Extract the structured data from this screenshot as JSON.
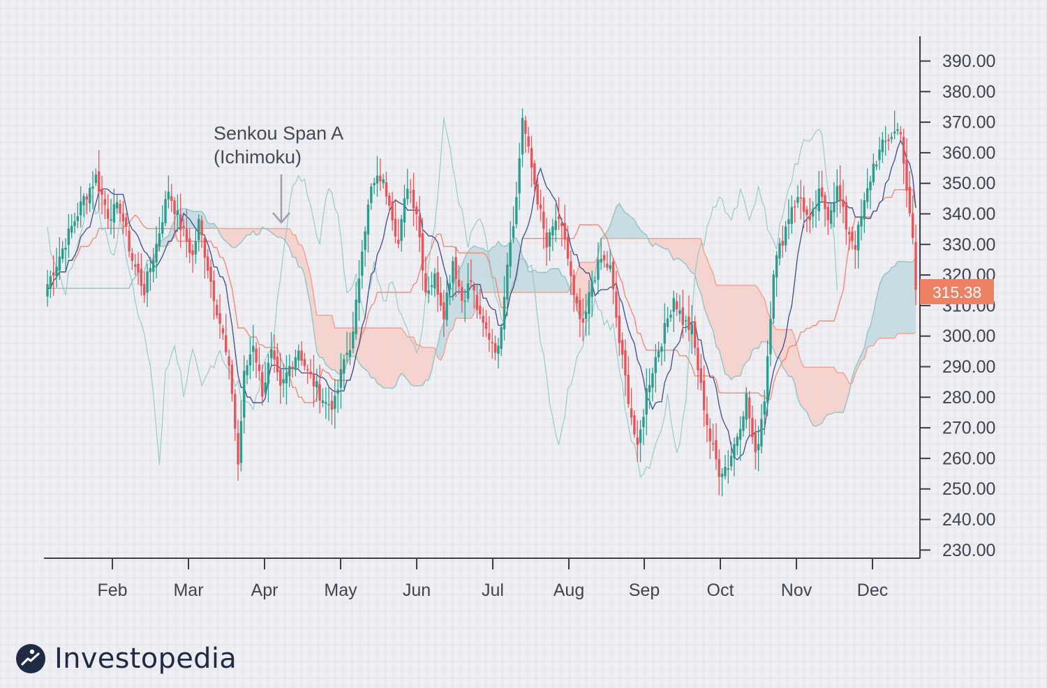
{
  "brand": {
    "name": "Investopedia"
  },
  "annotation": {
    "line1": "Senkou Span A",
    "line2": "(Ichimoku)"
  },
  "chart_data": {
    "type": "candlestick",
    "title": "",
    "indicator": "Ichimoku Cloud",
    "annotation_label": "Senkou Span A (Ichimoku)",
    "x_ticks": [
      "Feb",
      "Mar",
      "Apr",
      "May",
      "Jun",
      "Jul",
      "Aug",
      "Sep",
      "Oct",
      "Nov",
      "Dec"
    ],
    "y_ticks": [
      "390.00",
      "380.00",
      "370.00",
      "360.00",
      "350.00",
      "340.00",
      "330.00",
      "320.00",
      "310.00",
      "300.00",
      "290.00",
      "280.00",
      "270.00",
      "260.00",
      "250.00",
      "240.00",
      "230.00"
    ],
    "ylim": [
      228,
      395
    ],
    "last_price": "315.38",
    "colors": {
      "up": "#2e9c8c",
      "down": "#e5555a",
      "bullish_cloud": "#b9d7dd",
      "bearish_cloud": "#f7cac3",
      "span_a": "#8fc4c7",
      "span_b": "#f2a08c",
      "tenkan": "#3c4a8a",
      "kijun": "#ef8a74",
      "chikou": "#8ec5c4",
      "price_label": "#ee8064"
    },
    "close_anchors": [
      [
        0,
        317
      ],
      [
        6,
        331
      ],
      [
        12,
        345
      ],
      [
        16,
        352
      ],
      [
        20,
        340
      ],
      [
        24,
        342
      ],
      [
        28,
        325
      ],
      [
        32,
        315
      ],
      [
        36,
        330
      ],
      [
        40,
        348
      ],
      [
        44,
        336
      ],
      [
        48,
        326
      ],
      [
        50,
        337
      ],
      [
        54,
        318
      ],
      [
        58,
        300
      ],
      [
        61,
        282
      ],
      [
        63,
        258
      ],
      [
        65,
        287
      ],
      [
        68,
        298
      ],
      [
        71,
        282
      ],
      [
        74,
        294
      ],
      [
        77,
        282
      ],
      [
        80,
        290
      ],
      [
        83,
        296
      ],
      [
        86,
        288
      ],
      [
        89,
        283
      ],
      [
        92,
        278
      ],
      [
        95,
        278
      ],
      [
        98,
        292
      ],
      [
        101,
        300
      ],
      [
        104,
        330
      ],
      [
        107,
        348
      ],
      [
        110,
        352
      ],
      [
        113,
        345
      ],
      [
        116,
        330
      ],
      [
        119,
        350
      ],
      [
        122,
        341
      ],
      [
        125,
        315
      ],
      [
        128,
        319
      ],
      [
        131,
        308
      ],
      [
        134,
        325
      ],
      [
        137,
        312
      ],
      [
        140,
        318
      ],
      [
        143,
        305
      ],
      [
        146,
        300
      ],
      [
        149,
        295
      ],
      [
        152,
        325
      ],
      [
        155,
        345
      ],
      [
        157,
        372
      ],
      [
        159,
        360
      ],
      [
        162,
        345
      ],
      [
        165,
        329
      ],
      [
        168,
        338
      ],
      [
        171,
        332
      ],
      [
        174,
        312
      ],
      [
        177,
        302
      ],
      [
        180,
        318
      ],
      [
        183,
        325
      ],
      [
        186,
        322
      ],
      [
        189,
        298
      ],
      [
        192,
        280
      ],
      [
        195,
        262
      ],
      [
        198,
        282
      ],
      [
        201,
        293
      ],
      [
        204,
        302
      ],
      [
        207,
        313
      ],
      [
        210,
        305
      ],
      [
        213,
        302
      ],
      [
        216,
        283
      ],
      [
        219,
        266
      ],
      [
        222,
        256
      ],
      [
        225,
        258
      ],
      [
        228,
        268
      ],
      [
        231,
        280
      ],
      [
        234,
        260
      ],
      [
        237,
        280
      ],
      [
        240,
        322
      ],
      [
        243,
        332
      ],
      [
        246,
        343
      ],
      [
        249,
        345
      ],
      [
        252,
        336
      ],
      [
        255,
        346
      ],
      [
        258,
        340
      ],
      [
        261,
        348
      ],
      [
        264,
        336
      ],
      [
        267,
        330
      ],
      [
        270,
        343
      ],
      [
        273,
        356
      ],
      [
        276,
        362
      ],
      [
        279,
        366
      ],
      [
        282,
        368
      ],
      [
        284,
        346
      ],
      [
        286,
        332
      ],
      [
        287,
        315
      ]
    ]
  }
}
